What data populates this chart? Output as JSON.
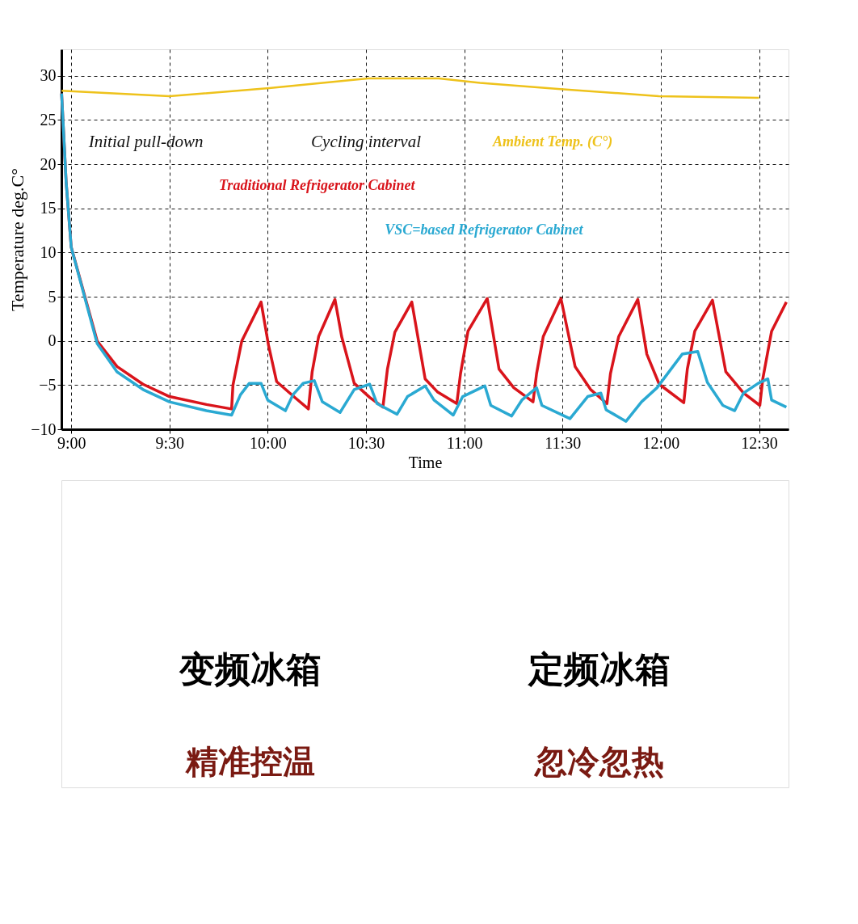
{
  "chart_data": {
    "type": "line",
    "xlabel": "Time",
    "ylabel": "Temperature deg.C°",
    "xlim": [
      8.95,
      12.65
    ],
    "xticks": [
      {
        "value": 9,
        "label": "9:00"
      },
      {
        "value": 9.5,
        "label": "9:30"
      },
      {
        "value": 10,
        "label": "10:00"
      },
      {
        "value": 10.5,
        "label": "10:30"
      },
      {
        "value": 11,
        "label": "11:00"
      },
      {
        "value": 11.5,
        "label": "11:30"
      },
      {
        "value": 12,
        "label": "12:00"
      },
      {
        "value": 12.5,
        "label": "12:30"
      }
    ],
    "ylim": [
      -10,
      33
    ],
    "yticks": [
      -10,
      -5,
      0,
      5,
      10,
      15,
      20,
      25,
      30
    ],
    "grid": true,
    "legend": false,
    "line_style": "solid",
    "marker": "none",
    "series": [
      {
        "name": "Ambient Temp. (C°)",
        "color": "#eec21b",
        "x": [
          8.951,
          9.5,
          10.007,
          10.51,
          10.87,
          11.08,
          11.49,
          11.99,
          12.5
        ],
        "values": [
          28.3,
          27.7,
          28.6,
          29.7,
          29.7,
          29.2,
          28.5,
          27.7,
          27.5
        ]
      },
      {
        "name": "Traditional Refrigerator Cabinet",
        "color": "#d9141b",
        "x": [
          8.951,
          8.974,
          9.0,
          9.132,
          9.233,
          9.365,
          9.5,
          9.688,
          9.816,
          9.823,
          9.868,
          9.966,
          10.004,
          10.045,
          10.143,
          10.207,
          10.226,
          10.259,
          10.342,
          10.376,
          10.44,
          10.519,
          10.586,
          10.609,
          10.647,
          10.733,
          10.801,
          10.865,
          10.962,
          10.981,
          11.019,
          11.117,
          11.177,
          11.252,
          11.35,
          11.368,
          11.402,
          11.492,
          11.564,
          11.643,
          11.726,
          11.744,
          11.786,
          11.883,
          11.929,
          11.992,
          12.117,
          12.135,
          12.173,
          12.263,
          12.331,
          12.421,
          12.504,
          12.519,
          12.564,
          12.639
        ],
        "values": [
          28,
          18,
          10.6,
          0,
          -2.9,
          -4.9,
          -6.3,
          -7.2,
          -7.7,
          -5,
          0,
          4.4,
          -0.5,
          -4.6,
          -6.5,
          -7.7,
          -3.5,
          0.5,
          4.7,
          0.5,
          -4.8,
          -6.4,
          -7.5,
          -3.2,
          1,
          4.4,
          -4.3,
          -5.8,
          -7.1,
          -3.7,
          1.1,
          4.8,
          -3.2,
          -5.3,
          -6.9,
          -3.7,
          0.5,
          4.8,
          -2.9,
          -5.5,
          -7.1,
          -3.7,
          0.5,
          4.7,
          -1.5,
          -4.9,
          -7,
          -3.2,
          1.1,
          4.6,
          -3.5,
          -5.9,
          -7.3,
          -4.3,
          1.1,
          4.4
        ]
      },
      {
        "name": "VSC=based Refrigerator Cabinet",
        "color": "#2aa9d2",
        "x": [
          8.951,
          8.974,
          9.0,
          9.132,
          9.233,
          9.365,
          9.5,
          9.688,
          9.816,
          9.861,
          9.906,
          9.966,
          10.0,
          10.09,
          10.128,
          10.18,
          10.237,
          10.278,
          10.368,
          10.44,
          10.519,
          10.556,
          10.658,
          10.711,
          10.801,
          10.846,
          10.944,
          10.992,
          11.105,
          11.135,
          11.241,
          11.293,
          11.368,
          11.395,
          11.538,
          11.628,
          11.695,
          11.722,
          11.823,
          11.902,
          11.981,
          12.109,
          12.188,
          12.237,
          12.316,
          12.376,
          12.421,
          12.496,
          12.545,
          12.564,
          12.639
        ],
        "values": [
          28,
          18,
          10.6,
          -0.3,
          -3.5,
          -5.5,
          -6.9,
          -7.9,
          -8.4,
          -6.1,
          -4.8,
          -4.8,
          -6.7,
          -7.9,
          -6.1,
          -4.8,
          -4.5,
          -6.9,
          -8.1,
          -5.5,
          -4.9,
          -7.1,
          -8.3,
          -6.3,
          -5.1,
          -6.7,
          -8.4,
          -6.3,
          -5.1,
          -7.3,
          -8.5,
          -6.7,
          -5.3,
          -7.3,
          -8.8,
          -6.3,
          -5.9,
          -7.8,
          -9.1,
          -6.9,
          -5.3,
          -1.5,
          -1.2,
          -4.7,
          -7.3,
          -7.9,
          -5.9,
          -4.8,
          -4.3,
          -6.7,
          -7.5
        ]
      }
    ],
    "annotations": [
      "Initial pull-down",
      "Cycling interval",
      "变频冰箱",
      "精准控温",
      "定频冰箱",
      "忽冷忽热"
    ]
  }
}
